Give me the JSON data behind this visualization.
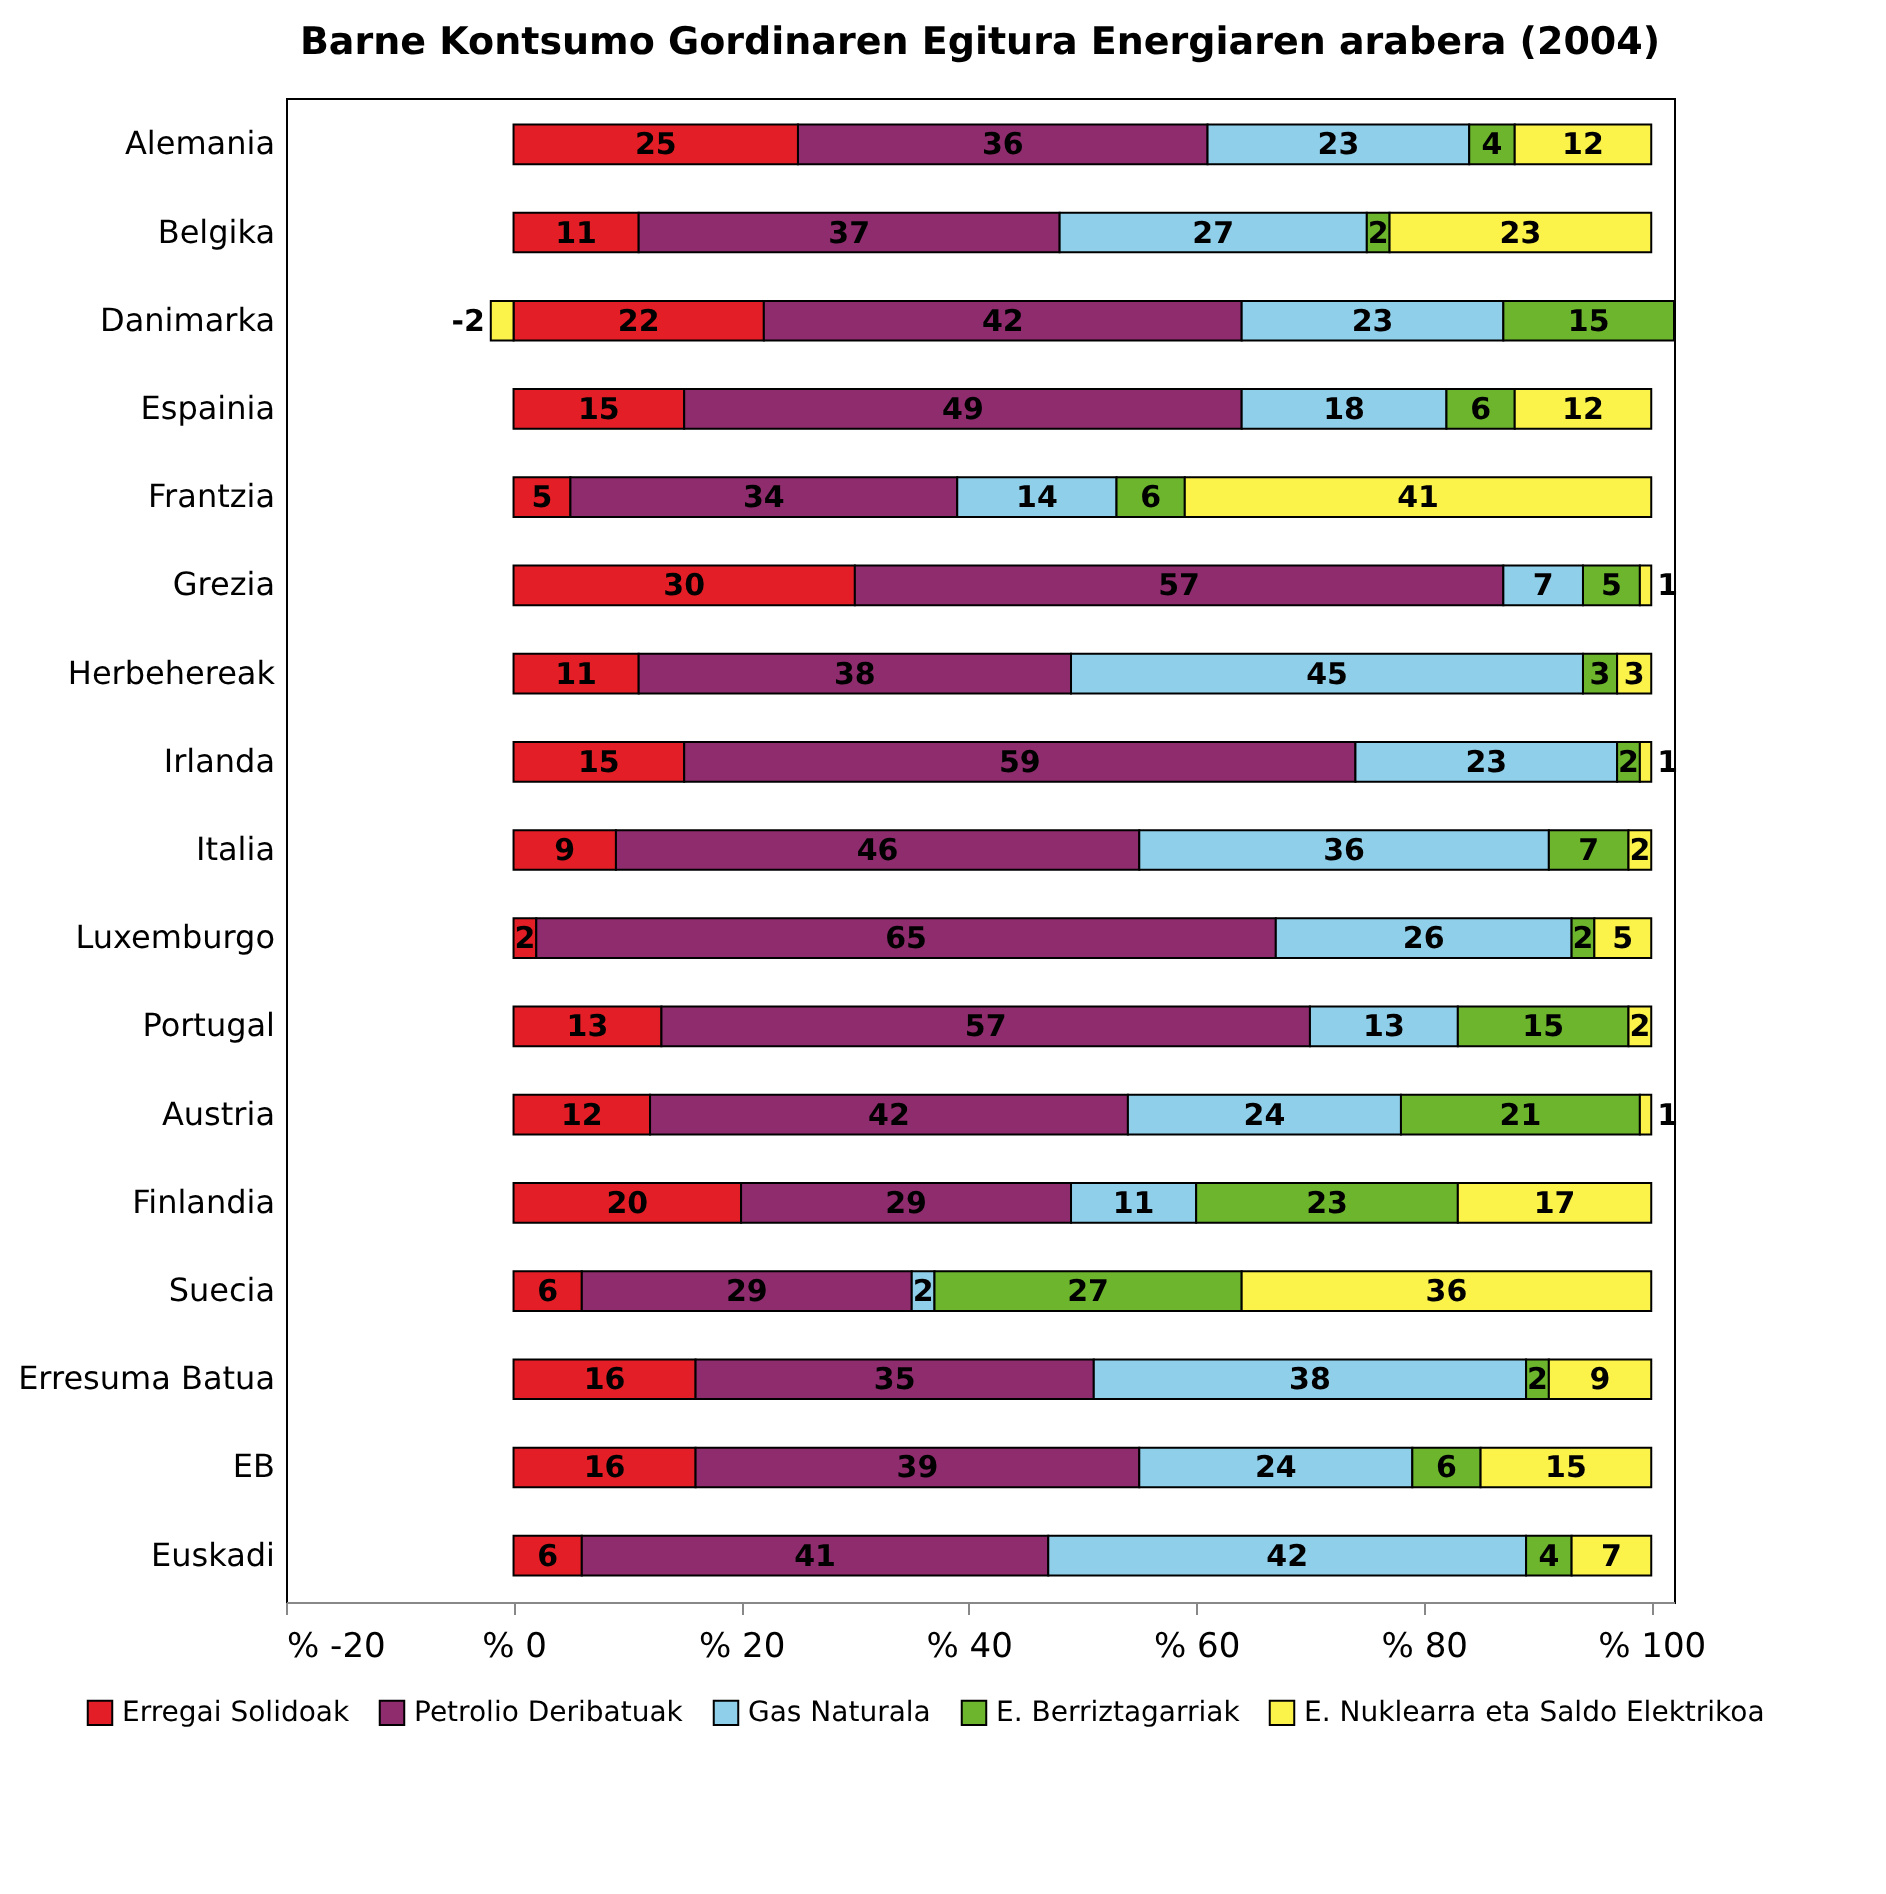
{
  "chart_data": {
    "type": "bar",
    "orientation": "horizontal",
    "stacked": true,
    "title": "Barne Kontsumo Gordinaren Egitura Energiaren arabera (2004)",
    "categories": [
      "Alemania",
      "Belgika",
      "Danimarka",
      "Espainia",
      "Frantzia",
      "Grezia",
      "Herbehereak",
      "Irlanda",
      "Italia",
      "Luxemburgo",
      "Portugal",
      "Austria",
      "Finlandia",
      "Suecia",
      "Erresuma Batua",
      "EB",
      "Euskadi"
    ],
    "series": [
      {
        "name": "Erregai Solidoak",
        "color": "#e41e26",
        "values": [
          25,
          11,
          22,
          15,
          5,
          30,
          11,
          15,
          9,
          2,
          13,
          12,
          20,
          6,
          16,
          16,
          6
        ]
      },
      {
        "name": "Petrolio Deribatuak",
        "color": "#8e2c6e",
        "values": [
          36,
          37,
          42,
          49,
          34,
          57,
          38,
          59,
          46,
          65,
          57,
          42,
          29,
          29,
          35,
          39,
          41
        ]
      },
      {
        "name": "Gas Naturala",
        "color": "#8fcfea",
        "values": [
          23,
          27,
          23,
          18,
          14,
          7,
          45,
          23,
          36,
          26,
          13,
          24,
          11,
          2,
          38,
          24,
          42
        ]
      },
      {
        "name": "E. Berriztagarriak",
        "color": "#6cb52d",
        "values": [
          4,
          2,
          15,
          6,
          6,
          5,
          3,
          2,
          7,
          2,
          15,
          21,
          23,
          27,
          2,
          6,
          4
        ]
      },
      {
        "name": "E. Nuklearra eta Saldo Elektrikoa",
        "color": "#fbf34a",
        "values": [
          12,
          23,
          -2,
          12,
          41,
          1,
          3,
          1,
          2,
          5,
          2,
          1,
          17,
          36,
          9,
          15,
          7
        ]
      }
    ],
    "xlim": [
      -20,
      102
    ],
    "xticks": [
      {
        "value": -20,
        "label": "% -20"
      },
      {
        "value": 0,
        "label": "% 0"
      },
      {
        "value": 20,
        "label": "% 20"
      },
      {
        "value": 40,
        "label": "% 40"
      },
      {
        "value": 60,
        "label": "% 60"
      },
      {
        "value": 80,
        "label": "% 80"
      },
      {
        "value": 100,
        "label": "% 100"
      }
    ],
    "data_labels": true,
    "legend": "bottom"
  }
}
